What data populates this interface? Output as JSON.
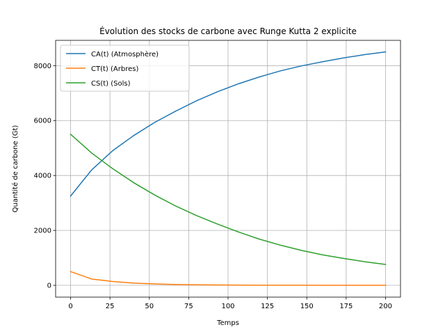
{
  "chart_data": {
    "type": "line",
    "title": "Évolution des stocks de carbone avec Runge Kutta 2 explicite",
    "xlabel": "Temps",
    "ylabel": "Quantité de carbone (Gt)",
    "xlim": [
      -9.5,
      209.5
    ],
    "ylim": [
      -430,
      8920
    ],
    "xticks": [
      0,
      25,
      50,
      75,
      100,
      125,
      150,
      175,
      200
    ],
    "yticks": [
      0,
      2000,
      4000,
      6000,
      8000
    ],
    "grid": true,
    "legend_position": "upper-left",
    "x": [
      0,
      13.33,
      26.67,
      40,
      53.33,
      66.67,
      80,
      93.33,
      106.67,
      120,
      133.33,
      146.67,
      160,
      173.33,
      186.67,
      200
    ],
    "series": [
      {
        "name": "CA(t) (Atmosphère)",
        "color": "#1f77b4",
        "values": [
          3250,
          4200,
          4900,
          5450,
          5930,
          6340,
          6720,
          7050,
          7340,
          7590,
          7810,
          7990,
          8140,
          8280,
          8400,
          8500
        ]
      },
      {
        "name": "CT(t) (Arbres)",
        "color": "#ff7f0e",
        "values": [
          500,
          230,
          140,
          80,
          50,
          30,
          20,
          12,
          8,
          5,
          4,
          3,
          2,
          2,
          1,
          1
        ]
      },
      {
        "name": "CS(t) (Sols)",
        "color": "#2ca02c",
        "values": [
          5500,
          4820,
          4250,
          3740,
          3290,
          2890,
          2540,
          2230,
          1940,
          1680,
          1460,
          1270,
          1110,
          980,
          860,
          760
        ]
      }
    ]
  }
}
